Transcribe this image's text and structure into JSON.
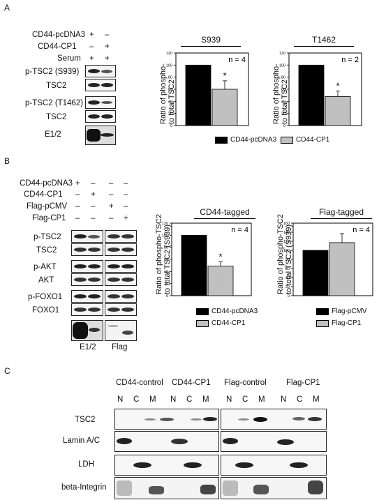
{
  "panelA": {
    "letter": "A",
    "conditions": [
      {
        "label": "CD44-pcDNA3",
        "marks": [
          "+",
          "–"
        ]
      },
      {
        "label": "CD44-CP1",
        "marks": [
          "–",
          "+"
        ]
      },
      {
        "label": "Serum",
        "marks": [
          "+",
          "+"
        ]
      }
    ],
    "blots": [
      "p-TSC2 (S939)",
      "TSC2",
      "p-TSC2 (T1462)",
      "TSC2",
      "E1/2"
    ],
    "legend": [
      "CD44-pcDNA3",
      "CD44-CP1"
    ]
  },
  "panelB": {
    "letter": "B",
    "conditions": [
      {
        "label": "CD44-pcDNA3",
        "marks": [
          "+",
          "–",
          "–",
          "–"
        ]
      },
      {
        "label": "CD44-CP1",
        "marks": [
          "–",
          "+",
          "–",
          "–"
        ]
      },
      {
        "label": "Flag-pCMV",
        "marks": [
          "–",
          "–",
          "+",
          "–"
        ]
      },
      {
        "label": "Flag-CP1",
        "marks": [
          "–",
          "–",
          "–",
          "+"
        ]
      }
    ],
    "blots": [
      "p-TSC2",
      "TSC2",
      "p-AKT",
      "AKT",
      "p-FOXO1",
      "FOXO1"
    ],
    "bottom_labels": [
      "E1/2",
      "Flag"
    ],
    "legend1": [
      "CD44-pcDNA3",
      "CD44-CP1"
    ],
    "legend2": [
      "Flag-pCMV",
      "Flag-CP1"
    ]
  },
  "panelC": {
    "letter": "C",
    "groups": [
      "CD44-control",
      "CD44-CP1",
      "Flag-control",
      "Flag-CP1"
    ],
    "fractions": [
      "N",
      "C",
      "M"
    ],
    "rows": [
      "TSC2",
      "Lamin A/C",
      "LDH",
      "beta-Integrin"
    ]
  },
  "colors": {
    "black_bar": "#000000",
    "grey_bar": "#c0c0c0"
  },
  "chart_data": [
    {
      "type": "bar",
      "title": "S939",
      "ylabel": "Ratio of phospho- to total TSC2",
      "ylim": [
        0,
        120
      ],
      "yticks": [
        "0",
        "20",
        "40",
        "60",
        "80",
        "100",
        "120"
      ],
      "categories": [
        "CD44-pcDNA3",
        "CD44-CP1"
      ],
      "values": [
        100,
        60
      ],
      "errors": [
        0,
        14
      ],
      "annotation": "n = 4",
      "significance": "*"
    },
    {
      "type": "bar",
      "title": "T1462",
      "ylabel": "Ratio of phospho- to total TSC2",
      "ylim": [
        0,
        120
      ],
      "yticks": [
        "0",
        "20",
        "40",
        "60",
        "80",
        "100",
        "120"
      ],
      "categories": [
        "CD44-pcDNA3",
        "CD44-CP1"
      ],
      "values": [
        100,
        48
      ],
      "errors": [
        0,
        9
      ],
      "annotation": "n = 2",
      "significance": "*"
    },
    {
      "type": "bar",
      "title": "CD44-tagged",
      "ylabel": "Ratio of phospho-TSC2 to total TSC2 (S939)",
      "ylim": [
        0,
        120
      ],
      "yticks": [
        "0",
        "20",
        "40",
        "60",
        "80",
        "100",
        "120"
      ],
      "categories": [
        "CD44-pcDNA3",
        "CD44-CP1"
      ],
      "values": [
        100,
        49
      ],
      "errors": [
        0,
        7
      ],
      "annotation": "n = 4",
      "significance": "*"
    },
    {
      "type": "bar",
      "title": "Flag-tagged",
      "ylabel": "Ratio of phospho-TSC2 to total TSC2 (S939)",
      "ylim": [
        0,
        160
      ],
      "yticks": [
        "0",
        "20",
        "40",
        "60",
        "80",
        "100",
        "120",
        "140",
        "160"
      ],
      "categories": [
        "Flag-pCMV",
        "Flag-CP1"
      ],
      "values": [
        100,
        117
      ],
      "errors": [
        0,
        20
      ],
      "annotation": "n = 4",
      "significance": ""
    }
  ]
}
